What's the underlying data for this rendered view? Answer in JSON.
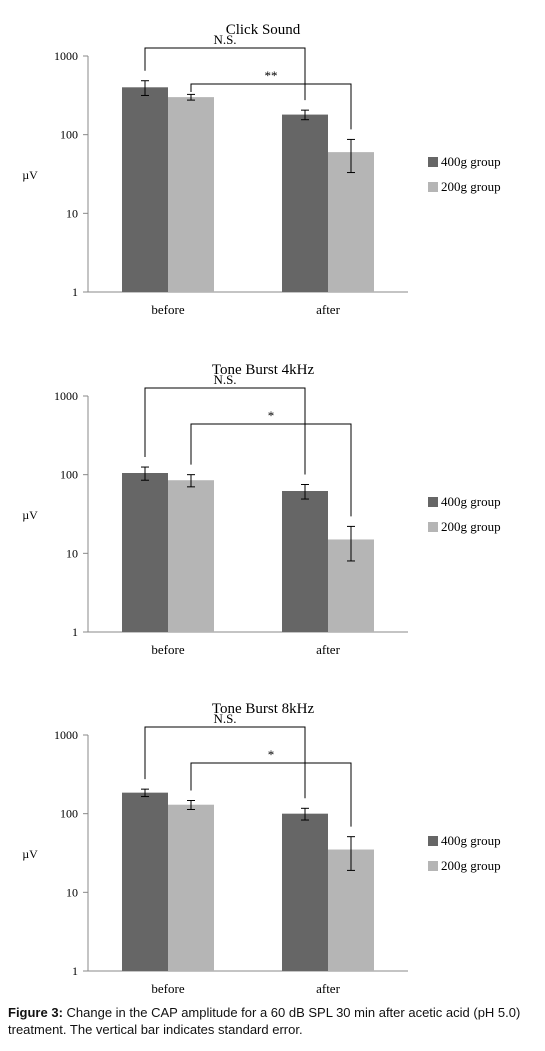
{
  "chart_data": [
    {
      "type": "bar",
      "title": "Click Sound",
      "ylabel": "µV",
      "xlabel": "",
      "yscale": "log",
      "ylim": [
        1,
        1000
      ],
      "yticks": [
        "1",
        "10",
        "100",
        "1000"
      ],
      "categories": [
        "before",
        "after"
      ],
      "series": [
        {
          "name": "400g group",
          "values": [
            400,
            180
          ],
          "errors": [
            85,
            25
          ]
        },
        {
          "name": "200g group",
          "values": [
            300,
            60
          ],
          "errors": [
            25,
            27
          ]
        }
      ],
      "color_400": "#666666",
      "color_200": "#b5b5b5",
      "legend": "right",
      "annotations": [
        {
          "text": "N.S.",
          "from": "before-400g group",
          "to": "after-400g group"
        },
        {
          "text": "**",
          "from": "before-200g group",
          "to": "after-200g group"
        }
      ]
    },
    {
      "type": "bar",
      "title": "Tone Burst 4kHz",
      "ylabel": "µV",
      "xlabel": "",
      "yscale": "log",
      "ylim": [
        1,
        1000
      ],
      "yticks": [
        "1",
        "10",
        "100",
        "1000"
      ],
      "categories": [
        "before",
        "after"
      ],
      "series": [
        {
          "name": "400g group",
          "values": [
            105,
            62
          ],
          "errors": [
            20,
            13
          ]
        },
        {
          "name": "200g group",
          "values": [
            85,
            15
          ],
          "errors": [
            15,
            7
          ]
        }
      ],
      "color_400": "#666666",
      "color_200": "#b5b5b5",
      "legend": "right",
      "annotations": [
        {
          "text": "N.S.",
          "from": "before-400g group",
          "to": "after-400g group"
        },
        {
          "text": "*",
          "from": "before-200g group",
          "to": "after-200g group"
        }
      ]
    },
    {
      "type": "bar",
      "title": "Tone Burst 8kHz",
      "ylabel": "µV",
      "xlabel": "",
      "yscale": "log",
      "ylim": [
        1,
        1000
      ],
      "yticks": [
        "1",
        "10",
        "100",
        "1000"
      ],
      "categories": [
        "before",
        "after"
      ],
      "series": [
        {
          "name": "400g group",
          "values": [
            185,
            100
          ],
          "errors": [
            20,
            17
          ]
        },
        {
          "name": "200g group",
          "values": [
            130,
            35
          ],
          "errors": [
            17,
            16
          ]
        }
      ],
      "color_400": "#666666",
      "color_200": "#b5b5b5",
      "legend": "right",
      "annotations": [
        {
          "text": "N.S.",
          "from": "before-400g group",
          "to": "after-400g group"
        },
        {
          "text": "*",
          "from": "before-200g group",
          "to": "after-200g group"
        }
      ]
    }
  ],
  "caption": {
    "label": "Figure 3:",
    "text": " Change in the CAP amplitude for a 60 dB SPL 30 min after acetic acid (pH 5.0) treatment. The vertical bar indicates standard error."
  }
}
